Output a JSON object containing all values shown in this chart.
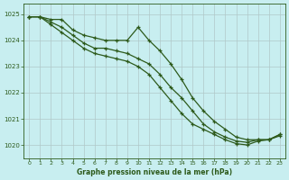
{
  "title": "Graphe pression niveau de la mer (hPa)",
  "background_color": "#c8eef0",
  "grid_color": "#b0c8c8",
  "line_color": "#2d5a1b",
  "xlim": [
    -0.5,
    23.5
  ],
  "ylim": [
    1019.5,
    1025.4
  ],
  "yticks": [
    1020,
    1021,
    1022,
    1023,
    1024,
    1025
  ],
  "xticks": [
    0,
    1,
    2,
    3,
    4,
    5,
    6,
    7,
    8,
    9,
    10,
    11,
    12,
    13,
    14,
    15,
    16,
    17,
    18,
    19,
    20,
    21,
    22,
    23
  ],
  "series1": [
    1024.9,
    1024.9,
    1024.8,
    1024.8,
    1024.4,
    1024.2,
    1024.1,
    1024.0,
    1024.0,
    1024.0,
    1024.5,
    1024.0,
    1023.6,
    1023.1,
    1022.5,
    1021.8,
    1021.3,
    1020.9,
    1020.6,
    1020.3,
    1020.2,
    1020.2,
    1020.2,
    1020.4
  ],
  "series2": [
    1024.9,
    1024.9,
    1024.7,
    1024.5,
    1024.2,
    1023.9,
    1023.7,
    1023.7,
    1023.6,
    1023.5,
    1023.3,
    1023.1,
    1022.7,
    1022.2,
    1021.8,
    1021.3,
    1020.8,
    1020.5,
    1020.3,
    1020.15,
    1020.1,
    1020.2,
    1020.2,
    1020.4
  ],
  "series3": [
    1024.9,
    1024.9,
    1024.6,
    1024.3,
    1024.0,
    1023.7,
    1023.5,
    1023.4,
    1023.3,
    1023.2,
    1023.0,
    1022.7,
    1022.2,
    1021.7,
    1021.2,
    1020.8,
    1020.6,
    1020.4,
    1020.2,
    1020.05,
    1020.0,
    1020.15,
    1020.2,
    1020.35
  ]
}
